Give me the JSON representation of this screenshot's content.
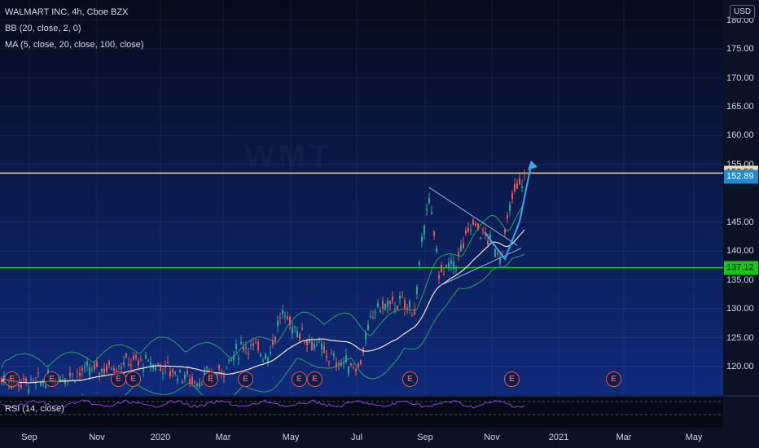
{
  "legend": {
    "title": "WALMART INC, 4h, Cboe BZX",
    "bb": "BB (20, close, 2, 0)",
    "ma": "MA (5, close, 20, close, 100, close)",
    "rsi": "RSI (14, close)"
  },
  "currency": "USD",
  "price_axis": {
    "ticks": [
      "180.00",
      "175.00",
      "170.00",
      "165.00",
      "160.00",
      "155.00",
      "145.00",
      "140.00",
      "135.00",
      "130.00",
      "125.00",
      "120.00"
    ],
    "levels": [
      180,
      175,
      170,
      165,
      160,
      155,
      145,
      140,
      135,
      130,
      125,
      120
    ],
    "badges": [
      {
        "label": "153.50",
        "value": 153.5,
        "bg": "#e8dcb0",
        "fg": "#1a1a1a"
      },
      {
        "label": "152.89",
        "value": 152.89,
        "bg": "#1f8ad0",
        "fg": "#ffffff"
      },
      {
        "label": "137.12",
        "value": 137.12,
        "bg": "#19c419",
        "fg": "#0a1a0a"
      }
    ]
  },
  "time_axis": {
    "labels": [
      "Sep",
      "Nov",
      "2020",
      "Mar",
      "May",
      "Jul",
      "Sep",
      "Nov",
      "2021",
      "Mar",
      "May"
    ]
  },
  "lines": {
    "resistance": {
      "value": 153.5,
      "color": "#e8dcb0"
    },
    "support": {
      "value": 137.12,
      "color": "#19c419"
    }
  },
  "earnings_marker": "E",
  "colors": {
    "up": "#26a69a",
    "down": "#ef5350",
    "ma": "#f2e9c9",
    "bb": "#2e9d6a",
    "rsi": "#8a3fd6",
    "accent": "#39a7e8"
  }
}
